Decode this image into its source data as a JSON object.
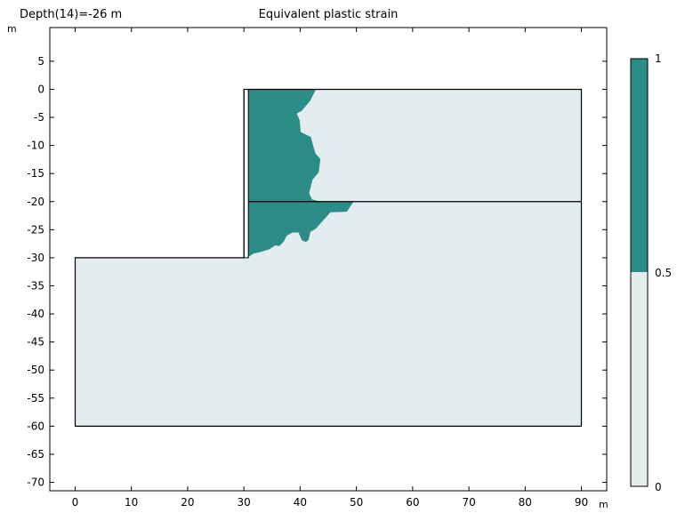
{
  "header": {
    "depth_label": "Depth(14)=-26 m",
    "title": "Equivalent plastic strain",
    "y_unit": "m",
    "x_unit": "m"
  },
  "colors": {
    "plastic": "#2b8c88",
    "elastic": "#e3edee",
    "outline": "#000000"
  },
  "chart_data": {
    "type": "heatmap",
    "title": "Equivalent plastic strain",
    "xlabel": "m",
    "ylabel": "m",
    "xlim": [
      -4.5,
      94.5
    ],
    "ylim": [
      -71.5,
      11.0
    ],
    "x_ticks": [
      0,
      10,
      20,
      30,
      40,
      50,
      60,
      70,
      80,
      90
    ],
    "y_ticks": [
      5,
      0,
      -5,
      -10,
      -15,
      -20,
      -25,
      -30,
      -35,
      -40,
      -45,
      -50,
      -55,
      -60,
      -65,
      -70
    ],
    "domain_outline": [
      [
        0,
        -30
      ],
      [
        30,
        -30
      ],
      [
        30,
        0
      ],
      [
        90,
        0
      ],
      [
        90,
        -60
      ],
      [
        0,
        -60
      ]
    ],
    "layer_interface": [
      [
        30.8,
        -20
      ],
      [
        90,
        -20
      ]
    ],
    "retaining_wall": [
      [
        30,
        0
      ],
      [
        30.8,
        0
      ],
      [
        30.8,
        -30
      ],
      [
        30,
        -30
      ]
    ],
    "plastic_zone": [
      [
        30.8,
        0
      ],
      [
        42.8,
        0
      ],
      [
        41.8,
        -2
      ],
      [
        40.3,
        -3.8
      ],
      [
        39.4,
        -4.3
      ],
      [
        39.9,
        -5.5
      ],
      [
        40.1,
        -7.6
      ],
      [
        41.9,
        -8.5
      ],
      [
        42.7,
        -11.4
      ],
      [
        43.6,
        -12.4
      ],
      [
        43.3,
        -14.8
      ],
      [
        42.2,
        -16.1
      ],
      [
        41.6,
        -18.5
      ],
      [
        42.1,
        -19.6
      ],
      [
        43.6,
        -20.0
      ],
      [
        49.5,
        -20.0
      ],
      [
        48.3,
        -21.8
      ],
      [
        45.4,
        -21.9
      ],
      [
        44.4,
        -23.0
      ],
      [
        42.8,
        -24.8
      ],
      [
        41.8,
        -25.4
      ],
      [
        41.5,
        -26.8
      ],
      [
        41.0,
        -27.2
      ],
      [
        40.3,
        -26.9
      ],
      [
        39.7,
        -25.5
      ],
      [
        38.6,
        -25.5
      ],
      [
        37.6,
        -26.1
      ],
      [
        37.1,
        -27.1
      ],
      [
        36.3,
        -27.9
      ],
      [
        35.6,
        -27.8
      ],
      [
        34.5,
        -28.5
      ],
      [
        33.2,
        -28.9
      ],
      [
        31.6,
        -29.3
      ],
      [
        30.8,
        -29.9
      ]
    ],
    "colorbar": {
      "labels": [
        "1",
        "0.5",
        "0"
      ],
      "min": 0,
      "max": 1,
      "threshold": 0.5
    }
  }
}
